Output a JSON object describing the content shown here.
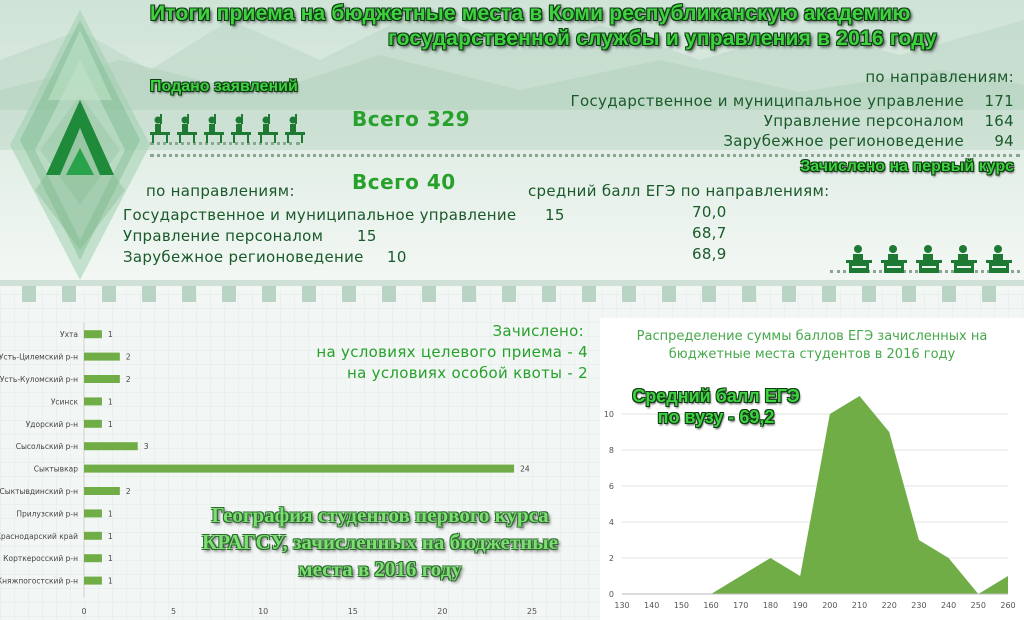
{
  "header": {
    "title_line1": "Итоги приема на бюджетные места в Коми республиканскую академию",
    "title_line2": "государственной службы и управления в 2016 году"
  },
  "applications": {
    "heading": "Подано заявлений",
    "total": "Всего 329",
    "by_direction_label": "по направлениям:",
    "directions": [
      {
        "name": "Государственное и муниципальное управление",
        "value": "171"
      },
      {
        "name": "Управление персоналом",
        "value": "164"
      },
      {
        "name": "Зарубежное регионоведение",
        "value": "94"
      }
    ]
  },
  "enrolled": {
    "heading": "Зачислено на первый курс",
    "total": "Всего 40",
    "by_direction_label": "по направлениям:",
    "avg_score_label": "средний балл ЕГЭ по направлениям:",
    "directions": [
      {
        "name": "Государственное и муниципальное управление",
        "value": "15",
        "avg": "70,0"
      },
      {
        "name": "Управление персоналом",
        "value": "15",
        "avg": "68,7"
      },
      {
        "name": "Зарубежное регионоведение",
        "value": "10",
        "avg": "68,9"
      }
    ]
  },
  "special": {
    "heading": "Зачислено:",
    "target": "на условиях целевого приема - 4",
    "quota": "на условиях особой квоты - 2"
  },
  "avg_overall": {
    "line1": "Средний балл ЕГЭ",
    "line2": "по вузу - 69,2"
  },
  "geography": {
    "line1": "География студентов первого курса",
    "line2": "КРАГСУ, зачисленных на бюджетные",
    "line3": "места в 2016 году"
  },
  "colors": {
    "bar": "#70ad47",
    "area": "#70ad47",
    "accent": "#3fd13f",
    "dark": "#0d3b12"
  },
  "icons": {
    "applicants": "student-raising-hand-icon",
    "enrolled": "student-at-desk-icon",
    "logo": "academy-diamond-logo"
  },
  "chart_data": [
    {
      "type": "bar",
      "orientation": "horizontal",
      "categories": [
        "Ухта",
        "Усть-Цилемский р-н",
        "Усть-Куломский р-н",
        "Усинск",
        "Удорский р-н",
        "Сысольский р-н",
        "Сыктывкар",
        "Сыктывдинский р-н",
        "Прилузский р-н",
        "Краснодарский край",
        "Корткеросский р-н",
        "Княжпогостский р-н"
      ],
      "values": [
        1,
        2,
        2,
        1,
        1,
        3,
        24,
        2,
        1,
        1,
        1,
        1
      ],
      "x_ticks": [
        0,
        5,
        10,
        15,
        20,
        25
      ],
      "xlim": [
        0,
        25
      ],
      "data_labels": true,
      "grid": false,
      "legend": "none"
    },
    {
      "type": "area",
      "title": "Распределение суммы баллов ЕГЭ зачисленных на бюджетные места студентов в 2016 году",
      "x": [
        130,
        140,
        150,
        160,
        170,
        180,
        190,
        200,
        210,
        220,
        230,
        240,
        250,
        260
      ],
      "y": [
        0,
        0,
        0,
        0,
        1,
        2,
        1,
        10,
        11,
        9,
        3,
        2,
        0,
        1
      ],
      "x_ticks": [
        130,
        140,
        150,
        160,
        170,
        180,
        190,
        200,
        210,
        220,
        230,
        240,
        250,
        260
      ],
      "y_ticks": [
        0,
        2,
        4,
        6,
        8,
        10
      ],
      "ylim": [
        0,
        12
      ],
      "grid": true,
      "legend": "none"
    }
  ]
}
